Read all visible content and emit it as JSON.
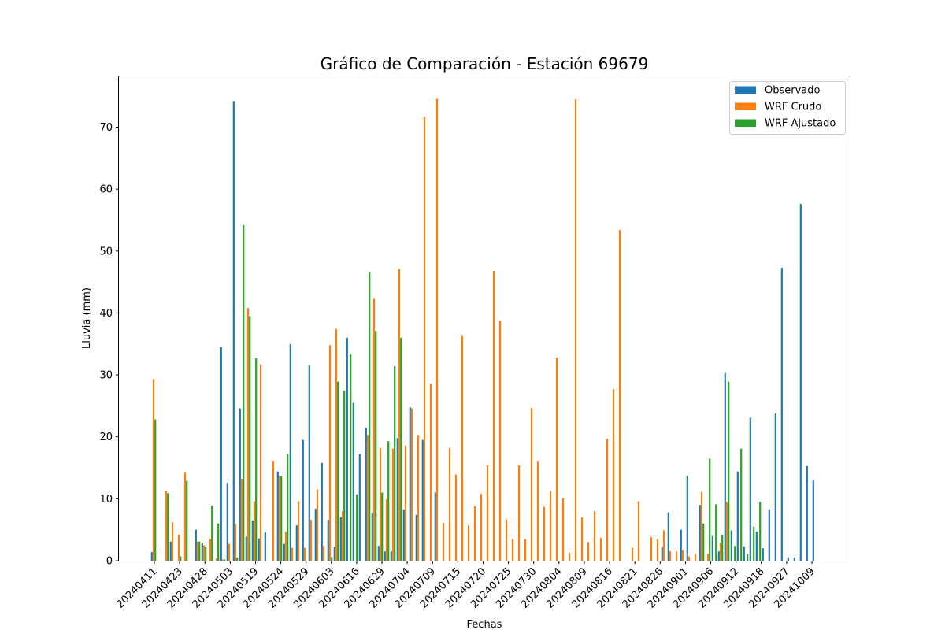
{
  "chart_data": {
    "type": "bar",
    "title": "Gráfico de Comparación - Estación 69679",
    "xlabel": "Fechas",
    "ylabel": "Lluvia (mm)",
    "ylim": [
      0,
      78.2
    ],
    "yticks": [
      0,
      10,
      20,
      30,
      40,
      50,
      60,
      70
    ],
    "legend_position": "top-right",
    "grid": false,
    "tick_labels": [
      "20240411",
      "20240423",
      "20240428",
      "20240503",
      "20240519",
      "20240524",
      "20240529",
      "20240603",
      "20240616",
      "20240629",
      "20240704",
      "20240709",
      "20240715",
      "20240720",
      "20240725",
      "20240730",
      "20240804",
      "20240809",
      "20240816",
      "20240821",
      "20240826",
      "20240901",
      "20240906",
      "20240912",
      "20240918",
      "20240927",
      "20241009"
    ],
    "series": [
      {
        "name": "Observado",
        "color": "#1f77b4",
        "values": [
          1.4,
          0,
          0,
          3.1,
          0,
          0,
          0,
          5.0,
          2.8,
          0,
          0,
          34.5,
          12.6,
          74.2,
          24.6,
          3.9,
          6.5,
          3.6,
          4.6,
          0,
          14.4,
          2.7,
          35.0,
          5.7,
          19.5,
          31.5,
          8.4,
          15.8,
          6.6,
          2.2,
          7.0,
          36.0,
          25.5,
          17.2,
          21.5,
          7.7,
          2.4,
          1.5,
          1.5,
          19.8,
          8.3,
          24.8,
          7.4,
          19.5,
          0,
          11.0,
          0,
          0,
          0,
          0,
          0,
          0,
          0,
          0,
          0,
          0,
          0,
          0,
          0,
          0,
          0,
          0,
          0,
          0,
          0,
          0,
          0,
          0,
          0,
          0,
          0,
          0,
          0,
          0,
          0,
          0,
          0,
          0,
          0,
          0,
          0,
          2.2,
          7.8,
          0,
          5.0,
          13.7,
          0,
          9.0,
          0,
          4.0,
          1.5,
          30.3,
          4.9,
          14.4,
          2.3,
          23.1,
          4.7,
          2.0,
          8.3,
          23.8,
          47.3,
          0.5,
          0.5,
          57.6,
          15.3,
          13.0
        ]
      },
      {
        "name": "WRF Crudo",
        "color": "#ff7f0e",
        "values": [
          29.3,
          0,
          11.2,
          6.2,
          4.2,
          14.2,
          0,
          3.1,
          2.5,
          3.5,
          0.4,
          0.2,
          2.7,
          5.9,
          13.2,
          40.8,
          9.6,
          31.7,
          0,
          16.0,
          13.6,
          4.7,
          2.1,
          9.6,
          2.1,
          6.6,
          11.5,
          2.4,
          34.8,
          37.4,
          8.0,
          0,
          0,
          0,
          20.3,
          42.3,
          18.2,
          9.9,
          18.1,
          47.1,
          18.6,
          24.6,
          20.2,
          71.7,
          28.6,
          74.6,
          6.1,
          18.2,
          13.9,
          36.3,
          5.7,
          8.8,
          10.8,
          15.4,
          46.8,
          38.7,
          6.7,
          3.5,
          15.4,
          3.5,
          24.7,
          16.0,
          8.7,
          11.2,
          32.8,
          10.1,
          1.3,
          74.5,
          7.0,
          3.0,
          8.0,
          3.7,
          19.7,
          27.7,
          53.4,
          0,
          2.1,
          9.6,
          0,
          3.8,
          3.5,
          4.9,
          1.5,
          1.5,
          1.7,
          0.7,
          1.1,
          11.1,
          1.1,
          0,
          2.9,
          9.5
        ]
      },
      {
        "name": "WRF Ajustado",
        "color": "#2ca02c",
        "values": [
          22.8,
          0,
          10.9,
          0,
          0.7,
          12.9,
          0,
          3.1,
          2.2,
          8.9,
          6.0,
          0.2,
          0,
          0.5,
          54.2,
          39.5,
          32.7,
          0,
          0,
          0,
          13.6,
          17.3,
          0,
          0,
          0,
          0,
          0,
          0,
          0.6,
          28.9,
          27.5,
          33.3,
          10.7,
          0,
          46.6,
          37.1,
          11.0,
          19.3,
          31.4,
          36.0,
          0,
          0,
          0,
          0,
          0,
          0,
          0,
          0,
          0,
          0,
          0,
          0,
          0,
          0,
          0,
          0,
          0,
          0,
          0,
          0,
          0,
          0,
          0,
          0,
          0,
          0,
          0,
          0,
          0,
          0,
          0,
          0,
          0,
          0,
          0,
          0,
          0,
          0,
          0,
          0,
          0,
          0,
          0,
          0,
          0,
          0,
          0,
          6.0,
          16.5,
          9.1,
          4.1,
          28.9,
          2.4,
          18.1,
          1.0,
          5.5,
          9.5
        ]
      }
    ]
  }
}
